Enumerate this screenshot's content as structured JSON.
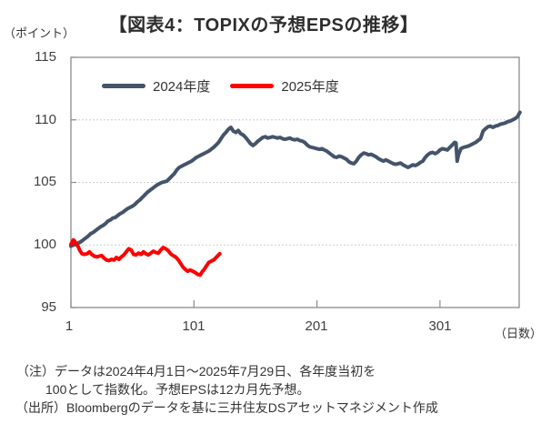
{
  "title": "【図表4：TOPIXの予想EPSの推移】",
  "y_axis": {
    "unit": "（ポイント）",
    "labels": [
      "115",
      "110",
      "105",
      "100",
      "95"
    ]
  },
  "x_axis": {
    "unit": "（日数）",
    "labels": [
      "1",
      "101",
      "201",
      "301"
    ]
  },
  "legend": [
    {
      "label": "2024年度",
      "color": "#44546A"
    },
    {
      "label": "2025年度",
      "color": "#FF0000"
    }
  ],
  "notes": {
    "line1": "（注）データは2024年4月1日～2025年7月29日、各年度当初を",
    "line2": "100として指数化。予想EPSは12カ月先予想。",
    "line3": "（出所）Bloombergのデータを基に三井住友DSアセットマネジメント作成"
  },
  "chart_data": {
    "type": "line",
    "title": "【図表4：TOPIXの予想EPSの推移】",
    "xlabel": "（日数）",
    "ylabel": "（ポイント）",
    "xlim": [
      1,
      366
    ],
    "ylim": [
      95,
      115
    ],
    "x_ticks": [
      1,
      101,
      201,
      301
    ],
    "y_ticks": [
      95,
      100,
      105,
      110,
      115
    ],
    "gridline_values": [
      100,
      105,
      110
    ],
    "grid": "dotted horizontal",
    "legend_position": "top-inside",
    "series": [
      {
        "name": "2024年度",
        "color": "#44546A",
        "points": [
          [
            1,
            99.9
          ],
          [
            3,
            100.0
          ],
          [
            5,
            100.05
          ],
          [
            7,
            100.15
          ],
          [
            9,
            100.25
          ],
          [
            11,
            100.4
          ],
          [
            13,
            100.55
          ],
          [
            15,
            100.7
          ],
          [
            17,
            100.9
          ],
          [
            19,
            101.0
          ],
          [
            21,
            101.15
          ],
          [
            23,
            101.3
          ],
          [
            25,
            101.45
          ],
          [
            27,
            101.55
          ],
          [
            29,
            101.7
          ],
          [
            31,
            101.9
          ],
          [
            33,
            102.0
          ],
          [
            35,
            102.15
          ],
          [
            37,
            102.2
          ],
          [
            39,
            102.35
          ],
          [
            41,
            102.5
          ],
          [
            43,
            102.6
          ],
          [
            45,
            102.75
          ],
          [
            47,
            102.9
          ],
          [
            49,
            103.0
          ],
          [
            51,
            103.1
          ],
          [
            53,
            103.25
          ],
          [
            55,
            103.45
          ],
          [
            57,
            103.6
          ],
          [
            59,
            103.8
          ],
          [
            61,
            104.0
          ],
          [
            63,
            104.2
          ],
          [
            65,
            104.35
          ],
          [
            67,
            104.5
          ],
          [
            69,
            104.65
          ],
          [
            71,
            104.8
          ],
          [
            73,
            104.9
          ],
          [
            75,
            105.0
          ],
          [
            77,
            105.05
          ],
          [
            79,
            105.1
          ],
          [
            81,
            105.3
          ],
          [
            83,
            105.5
          ],
          [
            85,
            105.7
          ],
          [
            87,
            106.0
          ],
          [
            89,
            106.2
          ],
          [
            91,
            106.3
          ],
          [
            93,
            106.4
          ],
          [
            95,
            106.5
          ],
          [
            97,
            106.6
          ],
          [
            99,
            106.7
          ],
          [
            101,
            106.85
          ],
          [
            103,
            107.0
          ],
          [
            105,
            107.1
          ],
          [
            107,
            107.2
          ],
          [
            109,
            107.3
          ],
          [
            111,
            107.4
          ],
          [
            113,
            107.5
          ],
          [
            115,
            107.65
          ],
          [
            117,
            107.8
          ],
          [
            119,
            108.0
          ],
          [
            121,
            108.2
          ],
          [
            123,
            108.5
          ],
          [
            125,
            108.8
          ],
          [
            127,
            109.0
          ],
          [
            129,
            109.25
          ],
          [
            131,
            109.4
          ],
          [
            133,
            109.1
          ],
          [
            135,
            109.0
          ],
          [
            137,
            109.15
          ],
          [
            139,
            108.9
          ],
          [
            141,
            108.8
          ],
          [
            143,
            108.6
          ],
          [
            145,
            108.35
          ],
          [
            147,
            108.1
          ],
          [
            149,
            107.95
          ],
          [
            151,
            108.1
          ],
          [
            153,
            108.3
          ],
          [
            155,
            108.45
          ],
          [
            157,
            108.6
          ],
          [
            159,
            108.65
          ],
          [
            161,
            108.55
          ],
          [
            163,
            108.6
          ],
          [
            165,
            108.65
          ],
          [
            167,
            108.6
          ],
          [
            169,
            108.55
          ],
          [
            171,
            108.6
          ],
          [
            173,
            108.5
          ],
          [
            175,
            108.45
          ],
          [
            177,
            108.5
          ],
          [
            179,
            108.55
          ],
          [
            181,
            108.45
          ],
          [
            183,
            108.4
          ],
          [
            185,
            108.45
          ],
          [
            187,
            108.35
          ],
          [
            189,
            108.3
          ],
          [
            191,
            108.2
          ],
          [
            193,
            108.0
          ],
          [
            195,
            107.85
          ],
          [
            197,
            107.8
          ],
          [
            199,
            107.75
          ],
          [
            201,
            107.7
          ],
          [
            203,
            107.65
          ],
          [
            205,
            107.7
          ],
          [
            207,
            107.6
          ],
          [
            209,
            107.5
          ],
          [
            211,
            107.35
          ],
          [
            213,
            107.2
          ],
          [
            215,
            107.05
          ],
          [
            217,
            107.0
          ],
          [
            219,
            107.1
          ],
          [
            221,
            107.05
          ],
          [
            223,
            106.95
          ],
          [
            225,
            106.85
          ],
          [
            227,
            106.65
          ],
          [
            229,
            106.55
          ],
          [
            231,
            106.5
          ],
          [
            233,
            106.7
          ],
          [
            235,
            107.0
          ],
          [
            237,
            107.2
          ],
          [
            239,
            107.35
          ],
          [
            241,
            107.3
          ],
          [
            243,
            107.2
          ],
          [
            245,
            107.25
          ],
          [
            247,
            107.15
          ],
          [
            249,
            107.05
          ],
          [
            251,
            106.9
          ],
          [
            253,
            106.8
          ],
          [
            255,
            106.7
          ],
          [
            257,
            106.8
          ],
          [
            259,
            106.7
          ],
          [
            261,
            106.6
          ],
          [
            263,
            106.5
          ],
          [
            265,
            106.45
          ],
          [
            267,
            106.5
          ],
          [
            269,
            106.55
          ],
          [
            271,
            106.4
          ],
          [
            273,
            106.3
          ],
          [
            275,
            106.2
          ],
          [
            277,
            106.3
          ],
          [
            279,
            106.4
          ],
          [
            281,
            106.35
          ],
          [
            283,
            106.45
          ],
          [
            285,
            106.6
          ],
          [
            287,
            106.7
          ],
          [
            289,
            107.0
          ],
          [
            291,
            107.2
          ],
          [
            293,
            107.35
          ],
          [
            295,
            107.4
          ],
          [
            297,
            107.3
          ],
          [
            299,
            107.4
          ],
          [
            301,
            107.6
          ],
          [
            303,
            107.7
          ],
          [
            305,
            107.65
          ],
          [
            307,
            107.6
          ],
          [
            309,
            107.8
          ],
          [
            311,
            108.0
          ],
          [
            313,
            108.2
          ],
          [
            314,
            108.15
          ],
          [
            315,
            106.7
          ],
          [
            316,
            107.2
          ],
          [
            318,
            107.7
          ],
          [
            320,
            107.8
          ],
          [
            322,
            107.85
          ],
          [
            324,
            107.9
          ],
          [
            326,
            108.0
          ],
          [
            328,
            108.1
          ],
          [
            330,
            108.2
          ],
          [
            332,
            108.35
          ],
          [
            334,
            108.5
          ],
          [
            335,
            108.8
          ],
          [
            336,
            109.1
          ],
          [
            338,
            109.3
          ],
          [
            340,
            109.45
          ],
          [
            342,
            109.5
          ],
          [
            344,
            109.4
          ],
          [
            346,
            109.5
          ],
          [
            348,
            109.55
          ],
          [
            350,
            109.65
          ],
          [
            352,
            109.7
          ],
          [
            354,
            109.75
          ],
          [
            356,
            109.85
          ],
          [
            358,
            109.9
          ],
          [
            360,
            110.0
          ],
          [
            362,
            110.1
          ],
          [
            364,
            110.25
          ],
          [
            366,
            110.6
          ]
        ]
      },
      {
        "name": "2025年度",
        "color": "#FF0000",
        "points": [
          [
            1,
            100.05
          ],
          [
            2,
            100.25
          ],
          [
            3,
            100.4
          ],
          [
            4,
            100.3
          ],
          [
            5,
            100.15
          ],
          [
            6,
            100.0
          ],
          [
            7,
            99.85
          ],
          [
            8,
            99.6
          ],
          [
            9,
            99.45
          ],
          [
            10,
            99.3
          ],
          [
            12,
            99.25
          ],
          [
            14,
            99.3
          ],
          [
            16,
            99.45
          ],
          [
            18,
            99.25
          ],
          [
            20,
            99.1
          ],
          [
            22,
            99.05
          ],
          [
            24,
            99.1
          ],
          [
            26,
            99.15
          ],
          [
            28,
            98.95
          ],
          [
            30,
            98.8
          ],
          [
            32,
            98.75
          ],
          [
            34,
            98.85
          ],
          [
            36,
            98.8
          ],
          [
            38,
            99.0
          ],
          [
            40,
            98.85
          ],
          [
            42,
            99.05
          ],
          [
            44,
            99.2
          ],
          [
            46,
            99.45
          ],
          [
            48,
            99.7
          ],
          [
            50,
            99.6
          ],
          [
            52,
            99.25
          ],
          [
            54,
            99.2
          ],
          [
            56,
            99.35
          ],
          [
            58,
            99.25
          ],
          [
            60,
            99.45
          ],
          [
            62,
            99.3
          ],
          [
            64,
            99.2
          ],
          [
            66,
            99.35
          ],
          [
            68,
            99.5
          ],
          [
            70,
            99.4
          ],
          [
            72,
            99.35
          ],
          [
            74,
            99.6
          ],
          [
            76,
            99.8
          ],
          [
            78,
            99.7
          ],
          [
            80,
            99.55
          ],
          [
            82,
            99.3
          ],
          [
            84,
            99.15
          ],
          [
            86,
            99.05
          ],
          [
            88,
            98.85
          ],
          [
            90,
            98.55
          ],
          [
            92,
            98.25
          ],
          [
            94,
            98.05
          ],
          [
            96,
            97.9
          ],
          [
            98,
            98.0
          ],
          [
            100,
            97.9
          ],
          [
            102,
            97.8
          ],
          [
            104,
            97.65
          ],
          [
            106,
            97.6
          ],
          [
            107,
            97.75
          ],
          [
            108,
            97.9
          ],
          [
            109,
            98.0
          ],
          [
            110,
            98.15
          ],
          [
            111,
            98.3
          ],
          [
            112,
            98.45
          ],
          [
            113,
            98.6
          ],
          [
            115,
            98.7
          ],
          [
            117,
            98.8
          ],
          [
            119,
            99.0
          ],
          [
            120,
            99.1
          ],
          [
            121,
            99.2
          ],
          [
            122,
            99.3
          ]
        ]
      }
    ]
  }
}
